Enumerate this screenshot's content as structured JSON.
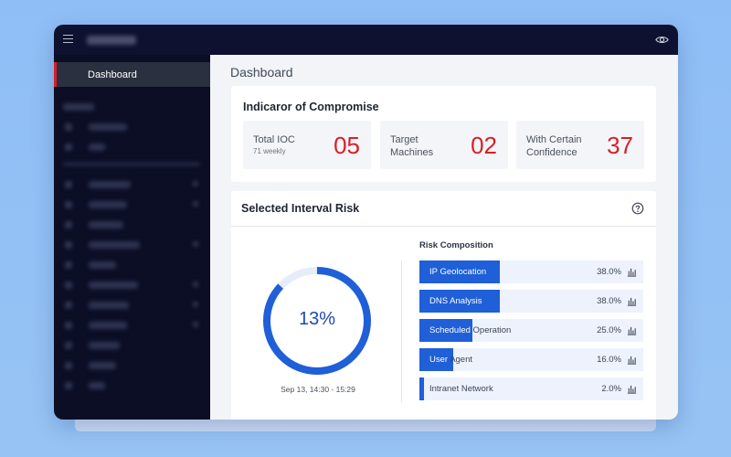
{
  "nav": {
    "active_label": "Dashboard"
  },
  "main": {
    "page_title": "Dashboard"
  },
  "ioc": {
    "title": "Indicaror of Compromise",
    "metrics": [
      {
        "label": "Total IOC",
        "sublabel": "71 weekly",
        "value": "05"
      },
      {
        "label_line1": "Target",
        "label_line2": "Machines",
        "value": "02"
      },
      {
        "label_line1": "With Certain",
        "label_line2": "Confidence",
        "value": "37"
      }
    ]
  },
  "risk": {
    "title": "Selected Interval Risk",
    "donut": {
      "percent_label": "13%",
      "fraction": 0.87,
      "caption": "Sep 13, 14:30 - 15:29"
    },
    "composition_title": "Risk Composition",
    "composition": [
      {
        "name": "IP Geolocation",
        "percent": "38.0%",
        "value": 38.0
      },
      {
        "name": "DNS Analysis",
        "percent": "38.0%",
        "value": 38.0
      },
      {
        "name": "Scheduled Operation",
        "percent": "25.0%",
        "value": 25.0
      },
      {
        "name": "User Agent",
        "percent": "16.0%",
        "value": 16.0
      },
      {
        "name": "Intranet Network",
        "percent": "2.0%",
        "value": 2.0
      }
    ]
  },
  "colors": {
    "accent": "#1f5fd8",
    "alert": "#da1e28",
    "nav_bg": "#0b0e24",
    "topbar_bg": "#0e1130"
  },
  "icons": {
    "menu": "hamburger-icon",
    "visibility": "eye-icon",
    "help": "help-icon",
    "bars": "bar-chart-icon"
  }
}
